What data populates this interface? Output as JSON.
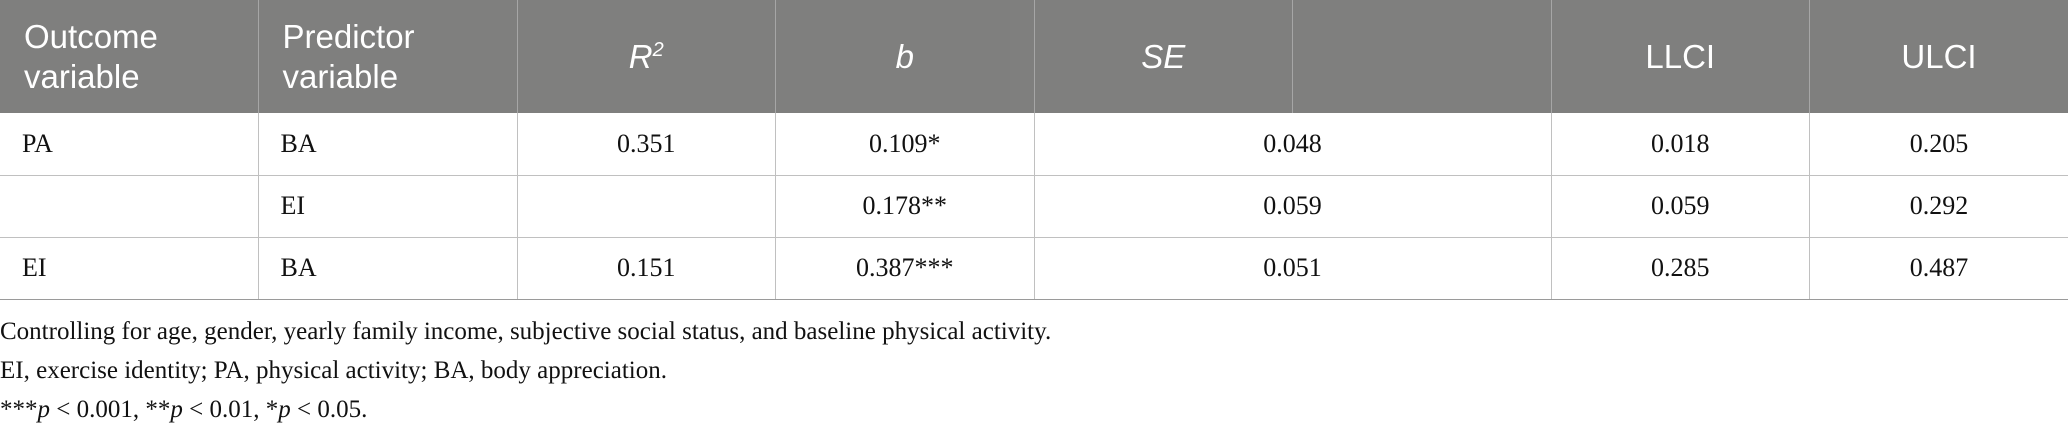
{
  "table": {
    "headers": {
      "outcome": "Outcome variable",
      "predictor": "Predictor variable",
      "r2_base": "R",
      "r2_sup": "2",
      "b": "b",
      "se": "SE",
      "llci": "LLCI",
      "ulci": "ULCI"
    },
    "rows": [
      {
        "outcome": "PA",
        "predictor": "BA",
        "r2": "0.351",
        "b": "0.109*",
        "se": "0.048",
        "llci": "0.018",
        "ulci": "0.205"
      },
      {
        "outcome": "",
        "predictor": "EI",
        "r2": "",
        "b": "0.178**",
        "se": "0.059",
        "llci": "0.059",
        "ulci": "0.292"
      },
      {
        "outcome": "EI",
        "predictor": "BA",
        "r2": "0.151",
        "b": "0.387***",
        "se": "0.051",
        "llci": "0.285",
        "ulci": "0.487"
      }
    ]
  },
  "notes": {
    "control": "Controlling for age, gender, yearly family income, subjective social status, and baseline physical activity.",
    "abbrev": "EI, exercise identity; PA, physical activity; BA, body appreciation.",
    "sig": {
      "p_symbol": "p",
      "part1_prefix": "***",
      "part1_value": " < 0.001, ",
      "part2_prefix": "**",
      "part2_value": " < 0.01, ",
      "part3_prefix": "*",
      "part3_value": " < 0.05."
    }
  }
}
